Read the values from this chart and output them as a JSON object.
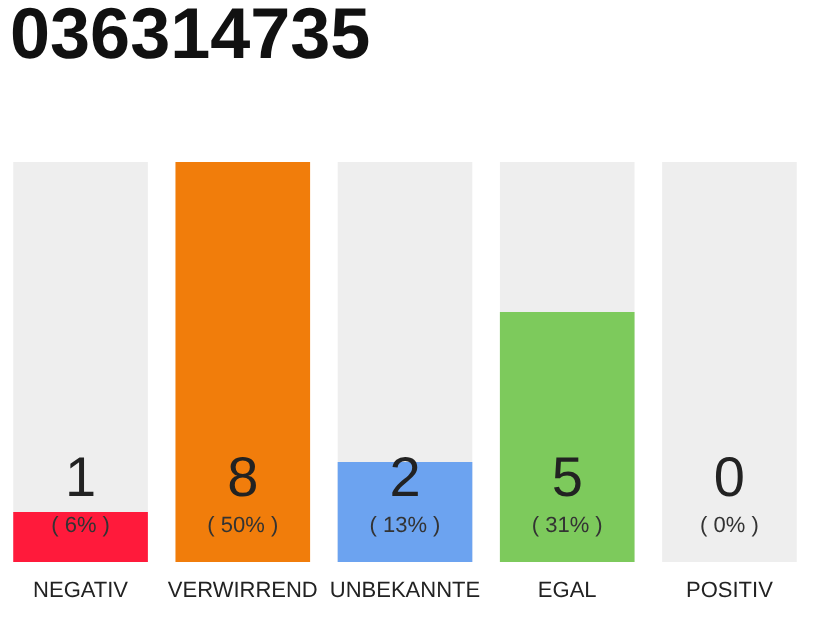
{
  "chart_data": {
    "type": "bar",
    "title": "036314735",
    "categories": [
      "NEGATIV",
      "VERWIRREND",
      "UNBEKANNTE",
      "EGAL",
      "POSITIV"
    ],
    "values": [
      1,
      8,
      2,
      5,
      0
    ],
    "colors": [
      "#ff1a3b",
      "#f17d0b",
      "#6ca3f0",
      "#7dca5c",
      "#cfcfcf"
    ],
    "data_labels": true,
    "annotations": [
      "( 6% )",
      "( 50% )",
      "( 13% )",
      "( 31% )",
      "( 0% )"
    ],
    "bands": [
      {
        "axis": "x",
        "from": "NEGATIV",
        "to": "NEGATIV",
        "color": "#eeeeee"
      },
      {
        "axis": "x",
        "from": "UNBEKANNTE",
        "to": "UNBEKANNTE",
        "color": "#eeeeee"
      },
      {
        "axis": "x",
        "from": "EGAL",
        "to": "EGAL",
        "color": "#eeeeee"
      },
      {
        "axis": "x",
        "from": "POSITIV",
        "to": "POSITIV",
        "color": "#eeeeee"
      }
    ],
    "grid": false
  }
}
